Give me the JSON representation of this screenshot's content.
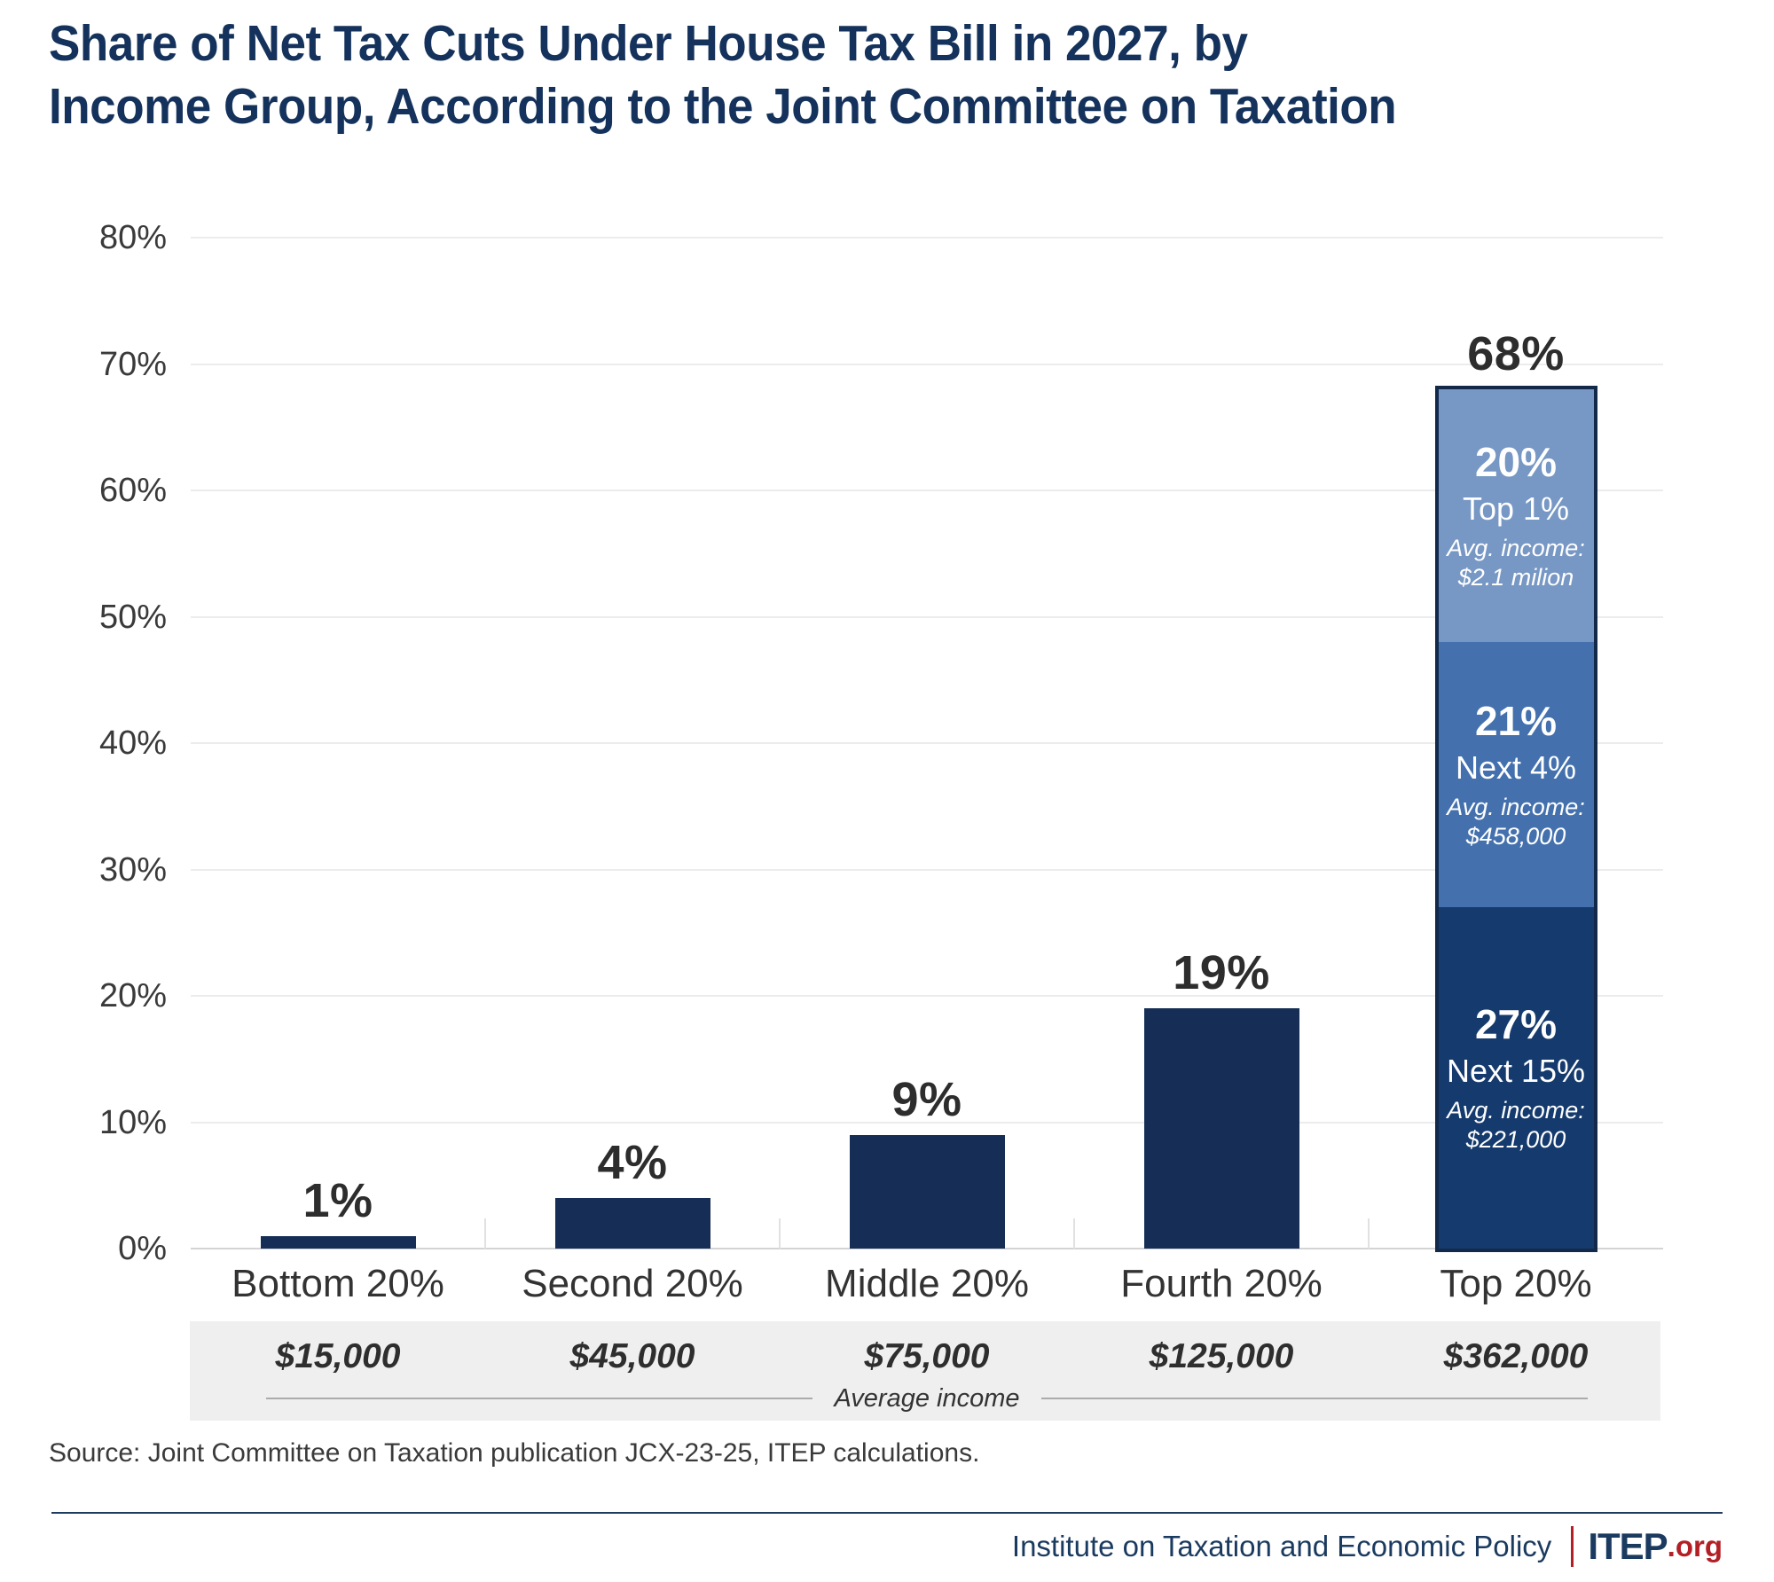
{
  "title": {
    "line1": "Share of Net Tax Cuts Under House Tax Bill in 2027, by",
    "line2": "Income Group, According to the Joint Committee on Taxation"
  },
  "source_note": "Source: Joint Committee on Taxation publication JCX-23-25, ITEP calculations.",
  "footer": {
    "org_name": "Institute on Taxation and Economic Policy",
    "logo_text": "ITEP",
    "logo_suffix": ".org"
  },
  "colors": {
    "title_navy": "#14325B",
    "bar_navy": "#162E55",
    "stacked_border": "#12294A",
    "seg_dark": "#153A6D",
    "seg_medium": "#4471AD",
    "seg_light": "#7797C4",
    "gridline": "#ECECEC",
    "axis_baseline": "#D4D4D4",
    "band_bg": "#EFEFEF",
    "value_label": "#2D2D2D",
    "footer_navy": "#1A3A5F",
    "logo_red": "#B22026"
  },
  "chart_data": {
    "type": "bar",
    "title": "Share of Net Tax Cuts Under House Tax Bill in 2027, by Income Group, According to the Joint Committee on Taxation",
    "ylim": [
      0,
      80
    ],
    "grid": "horizontal",
    "legend": "none",
    "yticks": [
      {
        "value": 0,
        "label": "0%"
      },
      {
        "value": 10,
        "label": "10%"
      },
      {
        "value": 20,
        "label": "20%"
      },
      {
        "value": 30,
        "label": "30%"
      },
      {
        "value": 40,
        "label": "40%"
      },
      {
        "value": 50,
        "label": "50%"
      },
      {
        "value": 60,
        "label": "60%"
      },
      {
        "value": 70,
        "label": "70%"
      },
      {
        "value": 80,
        "label": "80%"
      }
    ],
    "xlabel_caption": "Average income",
    "categories": [
      "Bottom 20%",
      "Second 20%",
      "Middle 20%",
      "Fourth 20%",
      "Top 20%"
    ],
    "values": [
      1,
      4,
      9,
      19,
      68
    ],
    "bars": [
      {
        "category": "Bottom 20%",
        "avg_income": "$15,000",
        "value": 1,
        "label": "1%"
      },
      {
        "category": "Second 20%",
        "avg_income": "$45,000",
        "value": 4,
        "label": "4%"
      },
      {
        "category": "Middle 20%",
        "avg_income": "$75,000",
        "value": 9,
        "label": "9%"
      },
      {
        "category": "Fourth 20%",
        "avg_income": "$125,000",
        "value": 19,
        "label": "19%"
      },
      {
        "category": "Top 20%",
        "avg_income": "$362,000",
        "value": 68,
        "label": "68%",
        "segments": [
          {
            "value": 27,
            "label": "27%",
            "group": "Next 15%",
            "avg_lines": [
              "Avg. income:",
              "$221,000"
            ],
            "color": "#153A6D"
          },
          {
            "value": 21,
            "label": "21%",
            "group": "Next 4%",
            "avg_lines": [
              "Avg. income:",
              "$458,000"
            ],
            "color": "#4471AD"
          },
          {
            "value": 20,
            "label": "20%",
            "group": "Top 1%",
            "avg_lines": [
              "Avg. income:",
              "$2.1 milion"
            ],
            "color": "#7797C4"
          }
        ]
      }
    ]
  }
}
